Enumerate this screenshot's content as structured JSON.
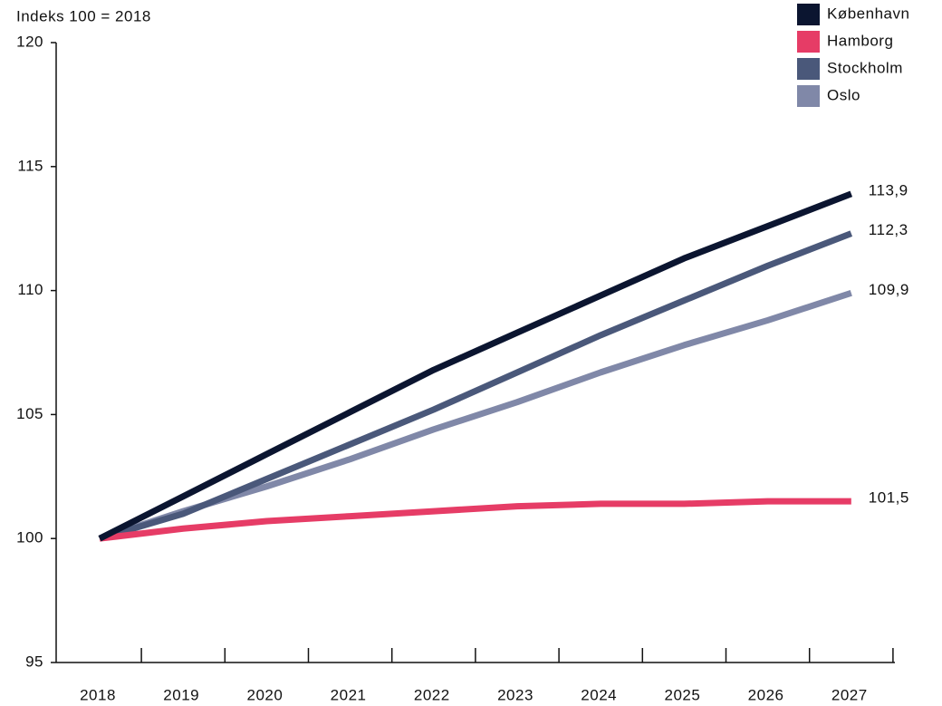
{
  "chart_data": {
    "type": "line",
    "y_axis_label": "Indeks 100 = 2018",
    "categories": [
      "2018",
      "2019",
      "2020",
      "2021",
      "2022",
      "2023",
      "2024",
      "2025",
      "2026",
      "2027"
    ],
    "series": [
      {
        "name": "København",
        "color": "#0b1530",
        "values": [
          100,
          101.7,
          103.4,
          105.1,
          106.8,
          108.3,
          109.8,
          111.3,
          112.6,
          113.9
        ],
        "value_labels": [
          null,
          null,
          null,
          null,
          null,
          null,
          null,
          null,
          null,
          "113,9"
        ]
      },
      {
        "name": "Hamborg",
        "color": "#e63c66",
        "values": [
          100,
          100.4,
          100.7,
          100.9,
          101.1,
          101.3,
          101.4,
          101.4,
          101.5,
          101.5
        ],
        "value_labels": [
          null,
          null,
          null,
          null,
          null,
          null,
          null,
          null,
          null,
          "101,5"
        ]
      },
      {
        "name": "Stockholm",
        "color": "#4a587a",
        "values": [
          100,
          101.0,
          102.4,
          103.8,
          105.2,
          106.7,
          108.2,
          109.6,
          111.0,
          112.3
        ],
        "value_labels": [
          null,
          null,
          null,
          null,
          null,
          null,
          null,
          null,
          null,
          "112,3"
        ]
      },
      {
        "name": "Oslo",
        "color": "#8088a8",
        "values": [
          100,
          101.1,
          102.1,
          103.2,
          104.4,
          105.5,
          106.7,
          107.8,
          108.8,
          109.9
        ],
        "value_labels": [
          null,
          null,
          null,
          null,
          null,
          null,
          null,
          null,
          null,
          "109,9"
        ]
      }
    ],
    "ylim": [
      95,
      120
    ],
    "yticks": [
      95,
      100,
      105,
      110,
      115,
      120
    ],
    "grid": false,
    "legend": "top-right"
  }
}
